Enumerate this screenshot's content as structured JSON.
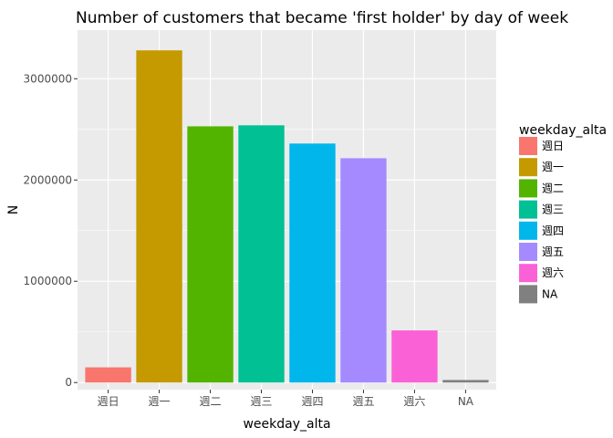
{
  "chart_data": {
    "type": "bar",
    "title": "Number of customers that became 'first holder' by day of week",
    "xlabel": "weekday_alta",
    "ylabel": "N",
    "categories": [
      "週日",
      "週一",
      "週二",
      "週三",
      "週四",
      "週五",
      "週六",
      "NA"
    ],
    "values": [
      150000,
      3280000,
      2530000,
      2540000,
      2360000,
      2215000,
      515000,
      25000
    ],
    "colors": [
      "#F8766D",
      "#C49A00",
      "#53B400",
      "#00C094",
      "#00B6EB",
      "#A58AFF",
      "#FB61D7",
      "#808080"
    ],
    "ylim": [
      -70000,
      3480000
    ],
    "yticks": [
      0,
      1000000,
      2000000,
      3000000
    ],
    "ytick_labels": [
      "0",
      "1000000",
      "2000000",
      "3000000"
    ],
    "grid": true,
    "legend": {
      "title": "weekday_alta",
      "placement": "right",
      "entries": [
        "週日",
        "週一",
        "週二",
        "週三",
        "週四",
        "週五",
        "週六",
        "NA"
      ]
    }
  }
}
